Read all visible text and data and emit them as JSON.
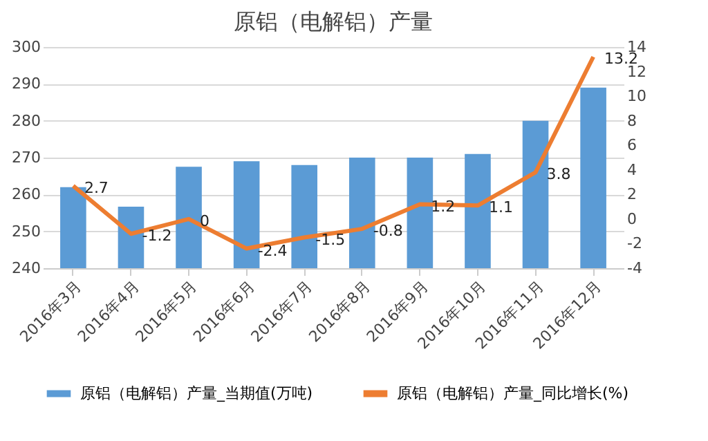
{
  "chart_data": {
    "type": "bar",
    "title": "原铝（电解铝）产量",
    "categories": [
      "2016年3月",
      "2016年4月",
      "2016年5月",
      "2016年6月",
      "2016年7月",
      "2016年8月",
      "2016年9月",
      "2016年10月",
      "2016年11月",
      "2016年12月"
    ],
    "series": [
      {
        "name": "原铝（电解铝）产量_当期值(万吨)",
        "color": "#5b9bd5",
        "values": [
          262,
          256.7,
          267.5,
          269,
          268,
          270,
          270,
          271,
          280,
          289
        ]
      },
      {
        "name": "原铝（电解铝）产量_同比增长(%)",
        "type": "line",
        "axis": "y2",
        "color": "#ed7d31",
        "values": [
          2.7,
          -1.2,
          0,
          -2.4,
          -1.5,
          -0.8,
          1.2,
          1.1,
          3.8,
          13.2
        ],
        "data_labels": true
      }
    ],
    "ylim": [
      240,
      300
    ],
    "yticks": [
      240,
      250,
      260,
      270,
      280,
      290,
      300
    ],
    "y2lim": [
      -4,
      14
    ],
    "y2ticks": [
      -4,
      -2,
      0,
      2,
      4,
      6,
      8,
      10,
      12,
      14
    ],
    "grid": "y",
    "legend": "bottom",
    "marker": "none",
    "line_style": "solid"
  }
}
